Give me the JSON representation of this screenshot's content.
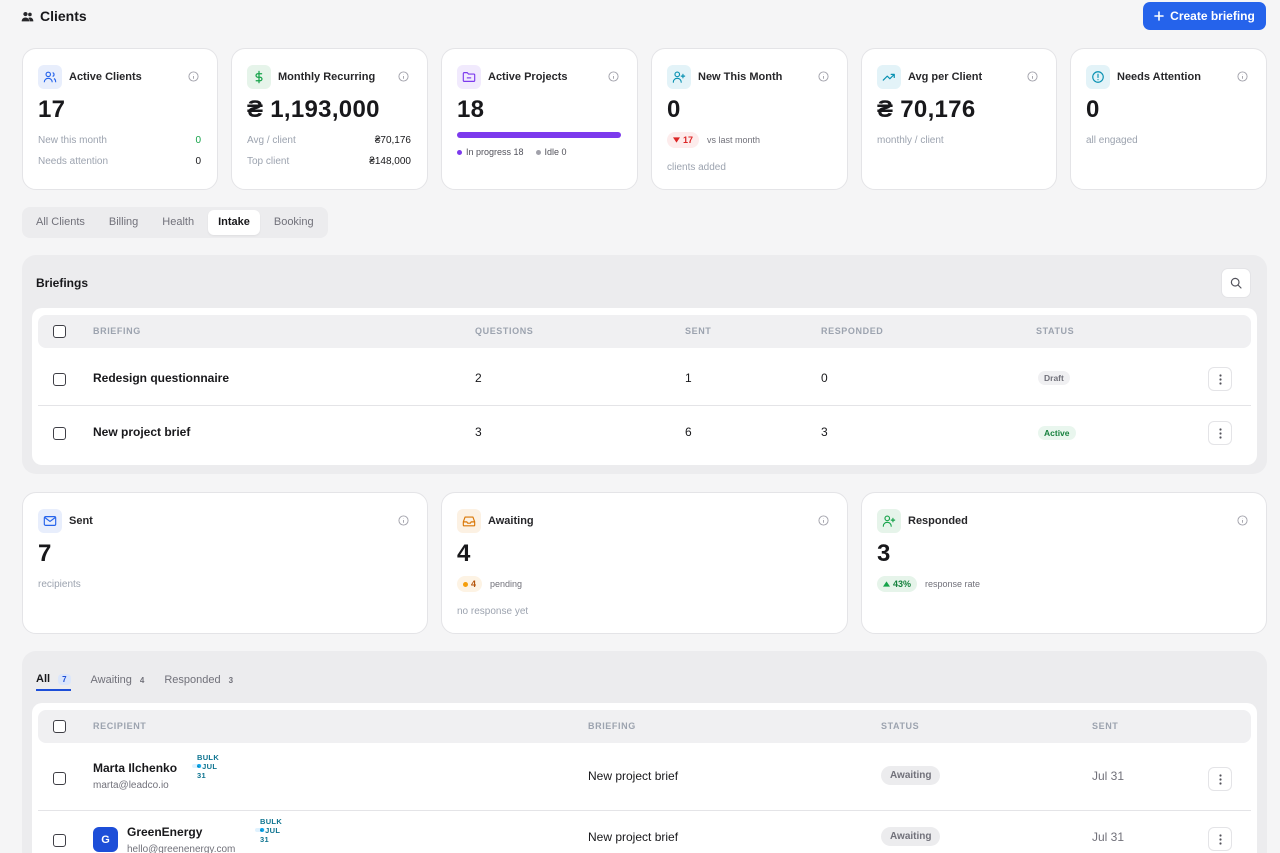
{
  "header": {
    "title": "Clients",
    "create_button": "Create briefing"
  },
  "stats": [
    {
      "label": "Active Clients",
      "value": "17",
      "rows": [
        {
          "k": "New this month",
          "v": "0"
        },
        {
          "k": "Needs attention",
          "v": "0"
        }
      ]
    },
    {
      "label": "Monthly Recurring",
      "value": "₴ 1,193,000",
      "rows": [
        {
          "k": "Avg / client",
          "v": "₴70,176"
        },
        {
          "k": "Top client",
          "v": "₴148,000"
        }
      ]
    },
    {
      "label": "Active Projects",
      "value": "18",
      "progress": 1.0,
      "legend": [
        "In progress 18",
        "Idle 0"
      ]
    },
    {
      "label": "New This Month",
      "value": "0",
      "change": "17",
      "change_note": "vs last month",
      "sub": "clients added"
    },
    {
      "label": "Avg per Client",
      "value": "₴ 70,176",
      "sub": "monthly / client"
    },
    {
      "label": "Needs Attention",
      "value": "0",
      "sub": "all engaged"
    }
  ],
  "tabs": [
    "All Clients",
    "Billing",
    "Health",
    "Intake",
    "Booking"
  ],
  "active_tab": "Intake",
  "briefings": {
    "title": "Briefings",
    "columns": [
      "BRIEFING",
      "QUESTIONS",
      "SENT",
      "RESPONDED",
      "STATUS"
    ],
    "rows": [
      {
        "name": "Redesign questionnaire",
        "questions": "2",
        "sent": "1",
        "responded": "0",
        "status": "Draft"
      },
      {
        "name": "New project brief",
        "questions": "3",
        "sent": "6",
        "responded": "3",
        "status": "Active"
      }
    ]
  },
  "metrics": [
    {
      "label": "Sent",
      "value": "7",
      "sub": "recipients"
    },
    {
      "label": "Awaiting",
      "value": "4",
      "badge": "4",
      "badge_note": "pending",
      "sub": "no response yet"
    },
    {
      "label": "Responded",
      "value": "3",
      "badge": "43%",
      "badge_note": "response rate"
    }
  ],
  "recipients": {
    "tabs": [
      {
        "label": "All",
        "count": "7"
      },
      {
        "label": "Awaiting",
        "count": "4"
      },
      {
        "label": "Responded",
        "count": "3"
      }
    ],
    "columns": [
      "RECIPIENT",
      "BRIEFING",
      "STATUS",
      "SENT"
    ],
    "rows": [
      {
        "name": "Marta Ilchenko",
        "email": "marta@leadco.io",
        "tag": "BULK · JUL 31",
        "briefing": "New project brief",
        "status": "Awaiting",
        "sent": "Jul 31"
      },
      {
        "name": "GreenEnergy",
        "avatar": "G",
        "email": "hello@greenenergy.com",
        "tag": "BULK · JUL 31",
        "briefing": "New project brief",
        "status": "Awaiting",
        "sent": "Jul 31"
      }
    ]
  },
  "colors": {
    "accent": "#2563eb",
    "progress": "#7c3aed",
    "positive": "#16a34a",
    "negative": "#dc2626"
  }
}
